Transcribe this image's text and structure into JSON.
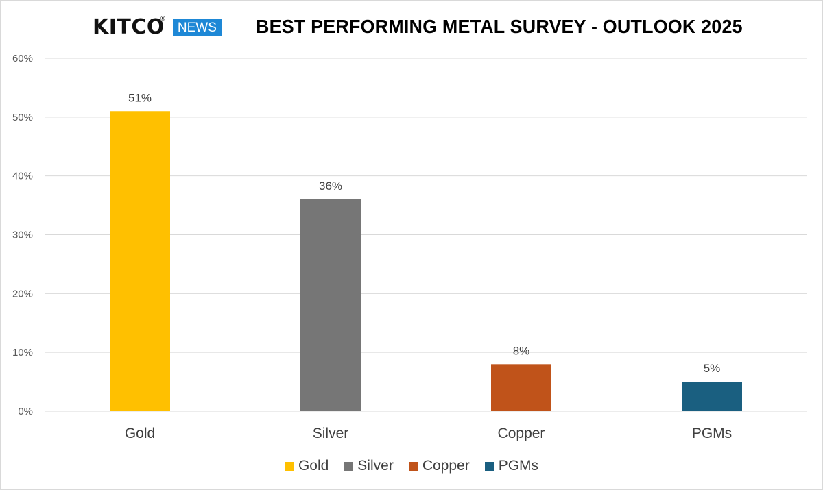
{
  "header": {
    "logo_word": "KITCO",
    "logo_reg": "®",
    "logo_news": "NEWS",
    "title": "BEST PERFORMING METAL SURVEY - OUTLOOK 2025"
  },
  "chart_data": {
    "type": "bar",
    "title": "BEST PERFORMING METAL SURVEY - OUTLOOK 2025",
    "xlabel": "",
    "ylabel": "",
    "categories": [
      "Gold",
      "Silver",
      "Copper",
      "PGMs"
    ],
    "values": [
      51,
      36,
      8,
      5
    ],
    "data_labels": [
      "51%",
      "36%",
      "8%",
      "5%"
    ],
    "colors": [
      "#ffc000",
      "#767676",
      "#c0531a",
      "#1a5f80"
    ],
    "ylim": [
      0,
      60
    ],
    "yticks": [
      0,
      10,
      20,
      30,
      40,
      50,
      60
    ],
    "ytick_labels": [
      "0%",
      "10%",
      "20%",
      "30%",
      "40%",
      "50%",
      "60%"
    ],
    "grid": true,
    "legend_placement": "bottom-center",
    "legend": [
      "Gold",
      "Silver",
      "Copper",
      "PGMs"
    ]
  }
}
